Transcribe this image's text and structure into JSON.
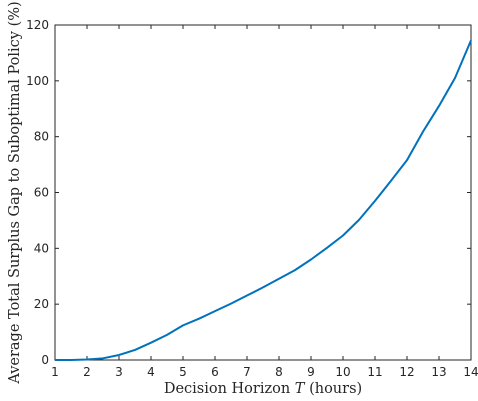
{
  "chart_data": {
    "type": "line",
    "title": "",
    "xlabel": "Decision Horizon T (hours)",
    "xlabel_parts": {
      "before": "Decision Horizon ",
      "variable": "T",
      "after": " (hours)"
    },
    "ylabel": "Average Total Surplus Gap to Suboptimal Policy (%)",
    "xlim": [
      1,
      14
    ],
    "ylim": [
      0,
      120
    ],
    "x_ticks": [
      1,
      2,
      3,
      4,
      5,
      6,
      7,
      8,
      9,
      10,
      11,
      12,
      13,
      14
    ],
    "y_ticks": [
      0,
      20,
      40,
      60,
      80,
      100,
      120
    ],
    "grid": false,
    "series": [
      {
        "color": "#0072BD",
        "x": [
          1,
          1.5,
          2,
          2.5,
          3,
          3.5,
          4,
          4.5,
          5,
          5.5,
          6,
          6.5,
          7,
          7.5,
          8,
          8.5,
          9,
          9.5,
          10,
          10.5,
          11,
          11.5,
          12,
          12.5,
          13,
          13.5,
          14
        ],
        "y": [
          0,
          0,
          0.2,
          0.6,
          1.8,
          3.6,
          6.2,
          9,
          12.4,
          14.8,
          17.5,
          20.2,
          23.1,
          26,
          29.1,
          32.2,
          36,
          40.2,
          44.6,
          50.2,
          57,
          64.2,
          71.6,
          81.8,
          91,
          101,
          114.5
        ]
      }
    ]
  }
}
